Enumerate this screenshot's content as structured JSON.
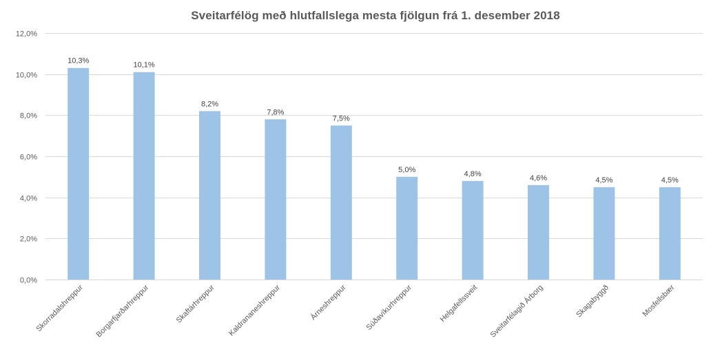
{
  "chart_data": {
    "type": "bar",
    "title": "Sveitarfélög með hlutfallslega mesta fjölgun frá 1. desember 2018",
    "xlabel": "",
    "ylabel": "",
    "ylim": [
      0,
      12
    ],
    "y_ticks": [
      0,
      2,
      4,
      6,
      8,
      10,
      12
    ],
    "y_tick_labels": [
      "0,0%",
      "2,0%",
      "4,0%",
      "6,0%",
      "8,0%",
      "10,0%",
      "12,0%"
    ],
    "grid": true,
    "legend": "none",
    "categories": [
      "Skorradalshreppur",
      "Borgarfjarðarhreppur",
      "Skaftárhreppur",
      "Kaldrananeshreppur",
      "Árneshreppur",
      "Súðavíkurhreppur",
      "Helgafellssveit",
      "Sveitarfélagið Árborg",
      "Skagabyggð",
      "Mosfellsbær"
    ],
    "values": [
      10.3,
      10.1,
      8.2,
      7.8,
      7.5,
      5.0,
      4.8,
      4.6,
      4.5,
      4.5
    ],
    "data_labels": [
      "10,3%",
      "10,1%",
      "8,2%",
      "7,8%",
      "7,5%",
      "5,0%",
      "4,8%",
      "4,6%",
      "4,5%",
      "4,5%"
    ],
    "colors": {
      "bar": "#9dc3e6",
      "grid": "#d9d9d9",
      "text": "#595959",
      "title": "#595959"
    }
  }
}
